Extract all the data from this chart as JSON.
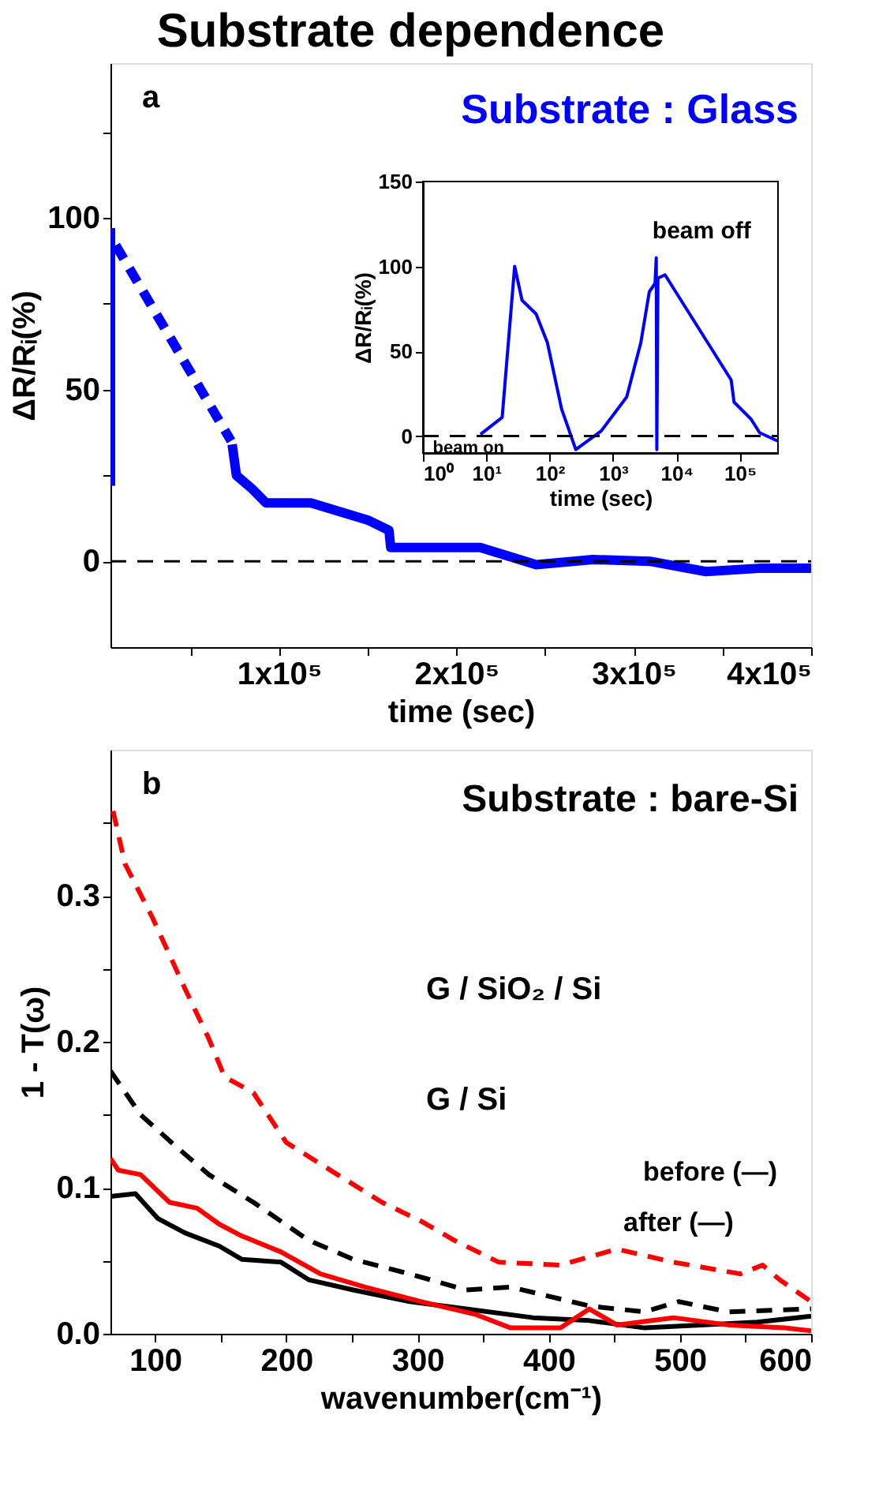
{
  "chart_data": [
    {
      "type": "line",
      "title": "Substrate dependence",
      "xlabel": "time (sec)",
      "ylabel": "ΔR/Rᵢ(%)",
      "annotations": [
        "a",
        "Substrate : Glass"
      ],
      "xlim": [
        5000,
        400000
      ],
      "xticks": [
        {
          "value": 50000,
          "label": null
        },
        {
          "value": 100000,
          "label": "1x10⁵"
        },
        {
          "value": 150000,
          "label": null
        },
        {
          "value": 200000,
          "label": "2x10⁵"
        },
        {
          "value": 250000,
          "label": null
        },
        {
          "value": 300000,
          "label": "3x10⁵"
        },
        {
          "value": 350000,
          "label": null
        },
        {
          "value": 400000,
          "label": "4x10⁵"
        }
      ],
      "ylim": [
        -25,
        145
      ],
      "yticks": [
        0,
        {
          "value": 25,
          "label": null
        },
        50,
        {
          "value": 75,
          "label": null
        },
        100,
        {
          "value": 125,
          "label": null
        }
      ],
      "series": [
        {
          "color": "#0000ff",
          "line_style": "solid",
          "x": [
            5000,
            5000
          ],
          "values": [
            22,
            97
          ]
        },
        {
          "color": "#0000ff",
          "line_style": "dashed",
          "x": [
            8000,
            73000
          ],
          "values": [
            92,
            35
          ]
        },
        {
          "color": "#0000ff",
          "line_style": "solid",
          "x": [
            73600,
            76000,
            85000,
            92700,
            118000,
            150000,
            162000,
            163000,
            181700,
            213500,
            245000,
            277000,
            309000,
            340700,
            372500,
            400000
          ],
          "values": [
            34,
            25,
            21,
            17,
            17,
            12,
            9,
            4,
            4,
            4,
            -1,
            0.5,
            0,
            -3,
            -2,
            -2
          ]
        }
      ],
      "ref_lines": [
        {
          "axis": "y",
          "value": 0,
          "color": "#000000",
          "line_style": "dashed"
        }
      ],
      "grid": false
    },
    {
      "type": "line",
      "xlabel": "time (sec)",
      "ylabel": "ΔR/Rᵢ(%)",
      "log": "x",
      "annotations": [
        {
          "text": "beam on",
          "x": 8,
          "y": 1
        },
        {
          "text": "beam off",
          "x": 6600,
          "y": 95
        }
      ],
      "xlim": [
        1,
        400000
      ],
      "xticks": [
        {
          "value": 1,
          "label": "10⁰"
        },
        {
          "value": 10,
          "label": "10¹"
        },
        {
          "value": 100,
          "label": "10²"
        },
        {
          "value": 1000,
          "label": "10³"
        },
        {
          "value": 10000,
          "label": "10⁴"
        },
        {
          "value": 100000,
          "label": "10⁵"
        }
      ],
      "ylim": [
        -10,
        150
      ],
      "yticks": [
        0,
        50,
        100,
        150
      ],
      "series": [
        {
          "color": "#0000ff",
          "line_style": "solid",
          "x": [
            8.1,
            17.8,
            28,
            36.6,
            61,
            92,
            154,
            258,
            650,
            1640,
            2740,
            3730,
            4600,
            4800,
            4900,
            5100,
            6600,
            73000,
            81000,
            150000,
            205000,
            400000
          ],
          "values": [
            1,
            11,
            100,
            80,
            72,
            55,
            16,
            -8,
            3,
            23,
            55,
            85,
            90,
            105,
            -8,
            93,
            95,
            33,
            20,
            10,
            2,
            -3
          ]
        }
      ],
      "ref_lines": [
        {
          "axis": "y",
          "value": 0,
          "color": "#000000",
          "line_style": "dashed"
        }
      ],
      "grid": false
    },
    {
      "type": "line",
      "xlabel": "wavenumber(cm⁻¹)",
      "ylabel": "1 - T(ω)",
      "annotations": [
        "b",
        "Substrate : bare-Si",
        "G / SiO₂ / Si",
        "G / Si",
        "before (—)",
        "after (—)"
      ],
      "xlim": [
        66,
        600
      ],
      "xticks": [
        100,
        {
          "value": 150,
          "label": null
        },
        200,
        {
          "value": 250,
          "label": null
        },
        300,
        {
          "value": 350,
          "label": null
        },
        400,
        {
          "value": 450,
          "label": null
        },
        500,
        {
          "value": 550,
          "label": null
        },
        600
      ],
      "ylim": [
        0,
        0.4
      ],
      "yticks": [
        {
          "value": 0,
          "label": "0.0"
        },
        {
          "value": 0.05,
          "label": null
        },
        0.1,
        {
          "value": 0.15,
          "label": null
        },
        0.2,
        {
          "value": 0.25,
          "label": null
        },
        0.3,
        {
          "value": 0.35,
          "label": null
        }
      ],
      "series": [
        {
          "color": "#ff0000",
          "line_style": "dashed",
          "x": [
            68,
            77,
            98,
            123,
            141,
            153,
            175,
            200,
            239,
            273,
            303,
            328,
            362,
            409,
            452,
            495,
            546,
            563,
            576,
            600
          ],
          "values": [
            0.358,
            0.322,
            0.285,
            0.236,
            0.202,
            0.176,
            0.165,
            0.131,
            0.109,
            0.09,
            0.077,
            0.064,
            0.049,
            0.047,
            0.058,
            0.049,
            0.041,
            0.047,
            0.037,
            0.022
          ]
        },
        {
          "color": "#000000",
          "line_style": "dashed",
          "x": [
            66,
            89,
            115,
            141,
            175,
            217,
            251,
            294,
            337,
            371,
            431,
            473,
            499,
            537,
            600
          ],
          "values": [
            0.18,
            0.15,
            0.129,
            0.109,
            0.09,
            0.064,
            0.051,
            0.041,
            0.03,
            0.032,
            0.019,
            0.015,
            0.022,
            0.015,
            0.017
          ]
        },
        {
          "color": "#000000",
          "line_style": "solid",
          "x": [
            66,
            85,
            102,
            123,
            149,
            166,
            196,
            217,
            251,
            294,
            337,
            388,
            431,
            473,
            516,
            559,
            600
          ],
          "values": [
            0.094,
            0.096,
            0.079,
            0.069,
            0.06,
            0.051,
            0.049,
            0.037,
            0.03,
            0.022,
            0.017,
            0.011,
            0.009,
            0.004,
            0.006,
            0.008,
            0.012
          ]
        },
        {
          "color": "#ff0000",
          "line_style": "solid",
          "x": [
            66,
            72,
            89,
            111,
            132,
            149,
            166,
            196,
            226,
            260,
            303,
            345,
            371,
            409,
            431,
            452,
            495,
            537,
            580,
            600
          ],
          "values": [
            0.12,
            0.112,
            0.109,
            0.09,
            0.086,
            0.075,
            0.067,
            0.056,
            0.041,
            0.032,
            0.022,
            0.013,
            0.004,
            0.004,
            0.017,
            0.006,
            0.011,
            0.006,
            0.004,
            0.002
          ]
        }
      ],
      "grid": false
    }
  ]
}
